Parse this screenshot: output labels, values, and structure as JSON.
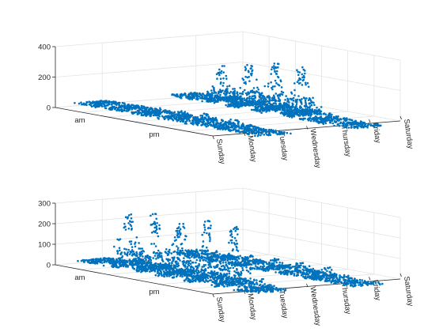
{
  "chart_data": [
    {
      "type": "scatter3d",
      "title": "",
      "xlabel": "",
      "ylabel": "",
      "zlabel": "",
      "x_ticks": [
        "Sunday",
        "Monday",
        "Tuesday",
        "Wednesday",
        "Thursday",
        "Friday",
        "Saturday"
      ],
      "y_ticks": [
        "am",
        "pm"
      ],
      "z_ticks": [
        0,
        200,
        400
      ],
      "zlim": [
        0,
        400
      ],
      "grid": true,
      "marker_color": "#0072bd",
      "series": [
        {
          "clusters": [
            {
              "day": "Sunday",
              "half": "am",
              "peak": 20,
              "width": 1.0
            },
            {
              "day": "Monday",
              "half": "am",
              "peak": 25,
              "width": 1.0
            },
            {
              "day": "Tuesday",
              "half": "am",
              "peak": 35,
              "width": 1.0
            },
            {
              "day": "Wednesday",
              "half": "am",
              "peak": 45,
              "width": 1.0
            },
            {
              "day": "Thursday",
              "half": "am",
              "peak": 60,
              "width": 1.2
            },
            {
              "day": "Friday",
              "half": "am",
              "peak": 55,
              "width": 1.2
            },
            {
              "day": "Saturday",
              "half": "am",
              "peak": 20,
              "width": 1.4
            },
            {
              "day": "Sunday",
              "half": "pm",
              "peak": 20,
              "width": 1.3
            },
            {
              "day": "Monday",
              "half": "pm",
              "peak": 230,
              "width": 0.5
            },
            {
              "day": "Tuesday",
              "half": "pm",
              "peak": 270,
              "width": 0.5
            },
            {
              "day": "Wednesday",
              "half": "pm",
              "peak": 310,
              "width": 0.5
            },
            {
              "day": "Thursday",
              "half": "pm",
              "peak": 320,
              "width": 0.5
            },
            {
              "day": "Friday",
              "half": "pm",
              "peak": 45,
              "width": 1.0
            },
            {
              "day": "Saturday",
              "half": "pm",
              "peak": 10,
              "width": 1.4
            }
          ]
        }
      ]
    },
    {
      "type": "scatter3d",
      "title": "",
      "xlabel": "",
      "ylabel": "",
      "zlabel": "",
      "x_ticks": [
        "Sunday",
        "Monday",
        "Tuesday",
        "Wednesday",
        "Thursday",
        "Friday",
        "Saturday"
      ],
      "y_ticks": [
        "am",
        "pm"
      ],
      "z_ticks": [
        0,
        100,
        200,
        300
      ],
      "zlim": [
        0,
        300
      ],
      "grid": true,
      "marker_color": "#0072bd",
      "series": [
        {
          "clusters": [
            {
              "day": "Sunday",
              "half": "am",
              "peak": 15,
              "width": 0.8
            },
            {
              "day": "Monday",
              "half": "am",
              "peak": 250,
              "width": 0.6
            },
            {
              "day": "Tuesday",
              "half": "am",
              "peak": 280,
              "width": 0.6
            },
            {
              "day": "Wednesday",
              "half": "am",
              "peak": 275,
              "width": 0.6
            },
            {
              "day": "Thursday",
              "half": "am",
              "peak": 295,
              "width": 0.6
            },
            {
              "day": "Friday",
              "half": "am",
              "peak": 285,
              "width": 0.6
            },
            {
              "day": "Saturday",
              "half": "am",
              "peak": 60,
              "width": 1.0
            },
            {
              "day": "Sunday",
              "half": "pm",
              "peak": 10,
              "width": 1.4
            },
            {
              "day": "Monday",
              "half": "pm",
              "peak": 15,
              "width": 1.0
            },
            {
              "day": "Tuesday",
              "half": "pm",
              "peak": 40,
              "width": 0.8
            },
            {
              "day": "Wednesday",
              "half": "pm",
              "peak": 45,
              "width": 0.8
            },
            {
              "day": "Thursday",
              "half": "pm",
              "peak": 50,
              "width": 0.9
            },
            {
              "day": "Friday",
              "half": "pm",
              "peak": 50,
              "width": 1.0
            },
            {
              "day": "Saturday",
              "half": "pm",
              "peak": 10,
              "width": 1.4
            }
          ]
        }
      ]
    }
  ]
}
